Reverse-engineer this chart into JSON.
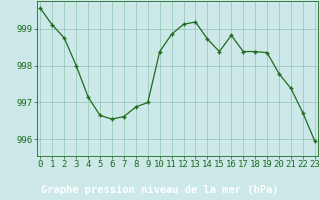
{
  "x": [
    0,
    1,
    2,
    3,
    4,
    5,
    6,
    7,
    8,
    9,
    10,
    11,
    12,
    13,
    14,
    15,
    16,
    17,
    18,
    19,
    20,
    21,
    22,
    23
  ],
  "y": [
    999.55,
    999.1,
    998.75,
    998.0,
    997.15,
    996.65,
    996.55,
    996.62,
    996.88,
    997.0,
    998.38,
    998.85,
    999.12,
    999.18,
    998.72,
    998.38,
    998.82,
    998.38,
    998.38,
    998.35,
    997.78,
    997.38,
    996.72,
    995.95
  ],
  "ylim_min": 995.55,
  "ylim_max": 999.75,
  "yticks": [
    996,
    997,
    998,
    999
  ],
  "xticks": [
    0,
    1,
    2,
    3,
    4,
    5,
    6,
    7,
    8,
    9,
    10,
    11,
    12,
    13,
    14,
    15,
    16,
    17,
    18,
    19,
    20,
    21,
    22,
    23
  ],
  "line_color": "#1e6b1e",
  "bg_color": "#cce8e8",
  "grid_color": "#99ccbb",
  "bottom_bar_color": "#336633",
  "xlabel": "Graphe pression niveau de la mer (hPa)",
  "xlabel_color": "#ffffff",
  "tick_color": "#1e6b1e",
  "xlabel_fontsize": 7.5,
  "tick_fontsize": 6.5,
  "figsize": [
    3.2,
    2.0
  ],
  "dpi": 100
}
